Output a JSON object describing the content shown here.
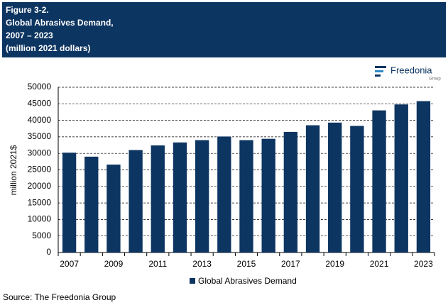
{
  "header": {
    "figure": "Figure 3-2.",
    "title_lines": [
      "Global Abrasives Demand,",
      "2007 – 2023",
      "(million 2021 dollars)"
    ]
  },
  "logo": {
    "name": "Freedonia",
    "sub": "Group"
  },
  "chart_data": {
    "type": "bar",
    "categories": [
      "2007",
      null,
      "2009",
      null,
      "2011",
      null,
      "2013",
      null,
      "2015",
      null,
      "2017",
      null,
      "2019",
      null,
      "2021",
      null,
      "2023"
    ],
    "series": [
      {
        "name": "Global Abrasives Demand",
        "color": "#0d3561",
        "values": [
          30200,
          29000,
          26600,
          31000,
          32400,
          33300,
          34000,
          35100,
          34000,
          34400,
          36500,
          38500,
          39300,
          38300,
          43000,
          44800,
          45800
        ]
      }
    ],
    "ylabel": "million 2021$",
    "ylim": [
      0,
      50000
    ],
    "yticks": [
      0,
      5000,
      10000,
      15000,
      20000,
      25000,
      30000,
      35000,
      40000,
      45000,
      50000
    ],
    "grid": true,
    "legend": "bottom"
  },
  "source": "Source: The Freedonia Group"
}
